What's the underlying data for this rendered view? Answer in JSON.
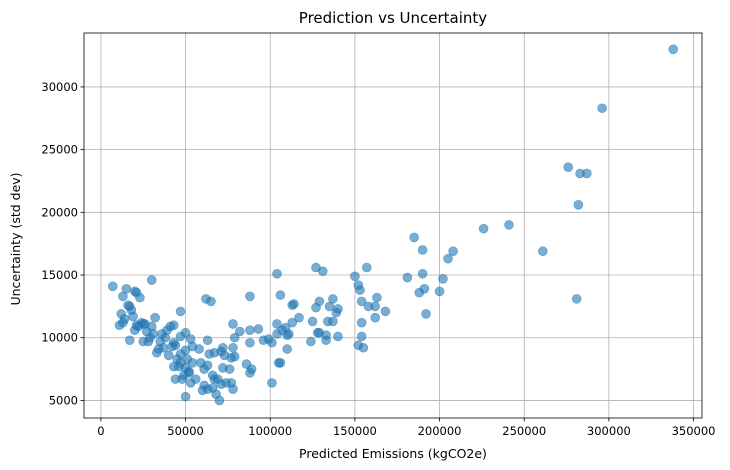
{
  "chart_data": {
    "type": "scatter",
    "title": "Prediction vs Uncertainty",
    "xlabel": "Predicted Emissions (kgCO2e)",
    "ylabel": "Uncertainty (std dev)",
    "xlim": [
      -10000,
      355000
    ],
    "ylim": [
      3600,
      34300
    ],
    "xticks": [
      0,
      50000,
      100000,
      150000,
      200000,
      250000,
      300000,
      350000
    ],
    "xtick_labels": [
      "0",
      "50000",
      "100000",
      "150000",
      "200000",
      "250000",
      "300000",
      "350000"
    ],
    "yticks": [
      5000,
      10000,
      15000,
      20000,
      25000,
      30000
    ],
    "ytick_labels": [
      "5000",
      "10000",
      "15000",
      "20000",
      "25000",
      "30000"
    ],
    "grid": true,
    "marker_color": "#1f77b4",
    "marker_alpha": 0.6,
    "series": [
      {
        "points": [
          [
            338000,
            33000
          ],
          [
            296000,
            28300
          ],
          [
            276000,
            23600
          ],
          [
            283000,
            23100
          ],
          [
            287000,
            23100
          ],
          [
            282000,
            20600
          ],
          [
            241000,
            19000
          ],
          [
            226000,
            18700
          ],
          [
            185000,
            18000
          ],
          [
            261000,
            16900
          ],
          [
            208000,
            16900
          ],
          [
            190000,
            17000
          ],
          [
            205000,
            16300
          ],
          [
            181000,
            14800
          ],
          [
            190000,
            15100
          ],
          [
            202000,
            14700
          ],
          [
            200000,
            13700
          ],
          [
            191000,
            13900
          ],
          [
            188000,
            13600
          ],
          [
            281000,
            13100
          ],
          [
            192000,
            11900
          ],
          [
            157000,
            15600
          ],
          [
            150000,
            14900
          ],
          [
            152000,
            14200
          ],
          [
            153000,
            13800
          ],
          [
            154000,
            12900
          ],
          [
            158000,
            12500
          ],
          [
            162000,
            12500
          ],
          [
            162000,
            11600
          ],
          [
            168000,
            12100
          ],
          [
            163000,
            13200
          ],
          [
            154000,
            11200
          ],
          [
            152000,
            9400
          ],
          [
            155000,
            9200
          ],
          [
            154000,
            10100
          ],
          [
            127000,
            15600
          ],
          [
            131000,
            15300
          ],
          [
            137000,
            13100
          ],
          [
            129000,
            12900
          ],
          [
            135000,
            12500
          ],
          [
            127000,
            12400
          ],
          [
            140000,
            12300
          ],
          [
            139000,
            12000
          ],
          [
            134000,
            11300
          ],
          [
            137000,
            11300
          ],
          [
            125000,
            11300
          ],
          [
            140000,
            10100
          ],
          [
            133000,
            10200
          ],
          [
            128000,
            10400
          ],
          [
            129000,
            10400
          ],
          [
            133000,
            9800
          ],
          [
            124000,
            9700
          ],
          [
            104000,
            15100
          ],
          [
            106000,
            13400
          ],
          [
            113000,
            12600
          ],
          [
            114000,
            12700
          ],
          [
            117000,
            11600
          ],
          [
            113000,
            11200
          ],
          [
            109000,
            10800
          ],
          [
            107000,
            10600
          ],
          [
            104000,
            11100
          ],
          [
            104000,
            10300
          ],
          [
            110000,
            10200
          ],
          [
            111000,
            10300
          ],
          [
            110000,
            9100
          ],
          [
            99000,
            9900
          ],
          [
            101000,
            9600
          ],
          [
            93000,
            10700
          ],
          [
            88000,
            10600
          ],
          [
            88000,
            9600
          ],
          [
            82000,
            10500
          ],
          [
            88000,
            13300
          ],
          [
            96000,
            9800
          ],
          [
            105000,
            8000
          ],
          [
            106000,
            8000
          ],
          [
            101000,
            6400
          ],
          [
            88000,
            7200
          ],
          [
            89000,
            7500
          ],
          [
            86000,
            7900
          ],
          [
            79000,
            8500
          ],
          [
            77000,
            8400
          ],
          [
            78000,
            9200
          ],
          [
            78000,
            11100
          ],
          [
            79000,
            10000
          ],
          [
            72000,
            9200
          ],
          [
            71000,
            8900
          ],
          [
            73000,
            8600
          ],
          [
            67000,
            8800
          ],
          [
            64000,
            8700
          ],
          [
            63000,
            9800
          ],
          [
            62000,
            13100
          ],
          [
            65000,
            12900
          ],
          [
            58000,
            9100
          ],
          [
            59000,
            8000
          ],
          [
            61000,
            7500
          ],
          [
            63000,
            7800
          ],
          [
            66000,
            7000
          ],
          [
            67000,
            6700
          ],
          [
            69000,
            6700
          ],
          [
            71000,
            6300
          ],
          [
            72000,
            7600
          ],
          [
            74000,
            6400
          ],
          [
            76000,
            7500
          ],
          [
            77000,
            6400
          ],
          [
            78000,
            5900
          ],
          [
            61000,
            6200
          ],
          [
            63000,
            5900
          ],
          [
            60000,
            5800
          ],
          [
            66000,
            6000
          ],
          [
            68000,
            5500
          ],
          [
            70000,
            5000
          ],
          [
            56000,
            6700
          ],
          [
            53000,
            6400
          ],
          [
            50000,
            5300
          ],
          [
            48000,
            6700
          ],
          [
            49000,
            7000
          ],
          [
            52000,
            7300
          ],
          [
            54000,
            8000
          ],
          [
            51000,
            8300
          ],
          [
            47000,
            8000
          ],
          [
            45000,
            8300
          ],
          [
            47000,
            8700
          ],
          [
            50000,
            9000
          ],
          [
            54000,
            9300
          ],
          [
            53000,
            9900
          ],
          [
            50000,
            10400
          ],
          [
            47000,
            10100
          ],
          [
            44000,
            9400
          ],
          [
            43000,
            9600
          ],
          [
            42000,
            9300
          ],
          [
            40000,
            8600
          ],
          [
            43000,
            7700
          ],
          [
            46000,
            7700
          ],
          [
            50000,
            7600
          ],
          [
            52000,
            7200
          ],
          [
            44000,
            6700
          ],
          [
            47000,
            12100
          ],
          [
            43000,
            11000
          ],
          [
            41000,
            10900
          ],
          [
            39000,
            10600
          ],
          [
            36000,
            10300
          ],
          [
            38000,
            10000
          ],
          [
            35000,
            9700
          ],
          [
            34000,
            9100
          ],
          [
            33000,
            8800
          ],
          [
            37000,
            9200
          ],
          [
            32000,
            11600
          ],
          [
            30000,
            10900
          ],
          [
            31000,
            10300
          ],
          [
            29000,
            10000
          ],
          [
            27000,
            10500
          ],
          [
            25000,
            11100
          ],
          [
            24000,
            11200
          ],
          [
            22000,
            10900
          ],
          [
            20000,
            10600
          ],
          [
            21000,
            11000
          ],
          [
            26000,
            11100
          ],
          [
            25000,
            9700
          ],
          [
            28000,
            9700
          ],
          [
            30000,
            14600
          ],
          [
            23000,
            13200
          ],
          [
            20000,
            13700
          ],
          [
            21000,
            13600
          ],
          [
            17000,
            12500
          ],
          [
            18000,
            12200
          ],
          [
            16000,
            12600
          ],
          [
            19000,
            11700
          ],
          [
            14000,
            11500
          ],
          [
            12000,
            11900
          ],
          [
            13000,
            11200
          ],
          [
            11000,
            11000
          ],
          [
            17000,
            9800
          ],
          [
            13000,
            13300
          ],
          [
            15000,
            13900
          ],
          [
            7000,
            14100
          ]
        ]
      }
    ]
  }
}
